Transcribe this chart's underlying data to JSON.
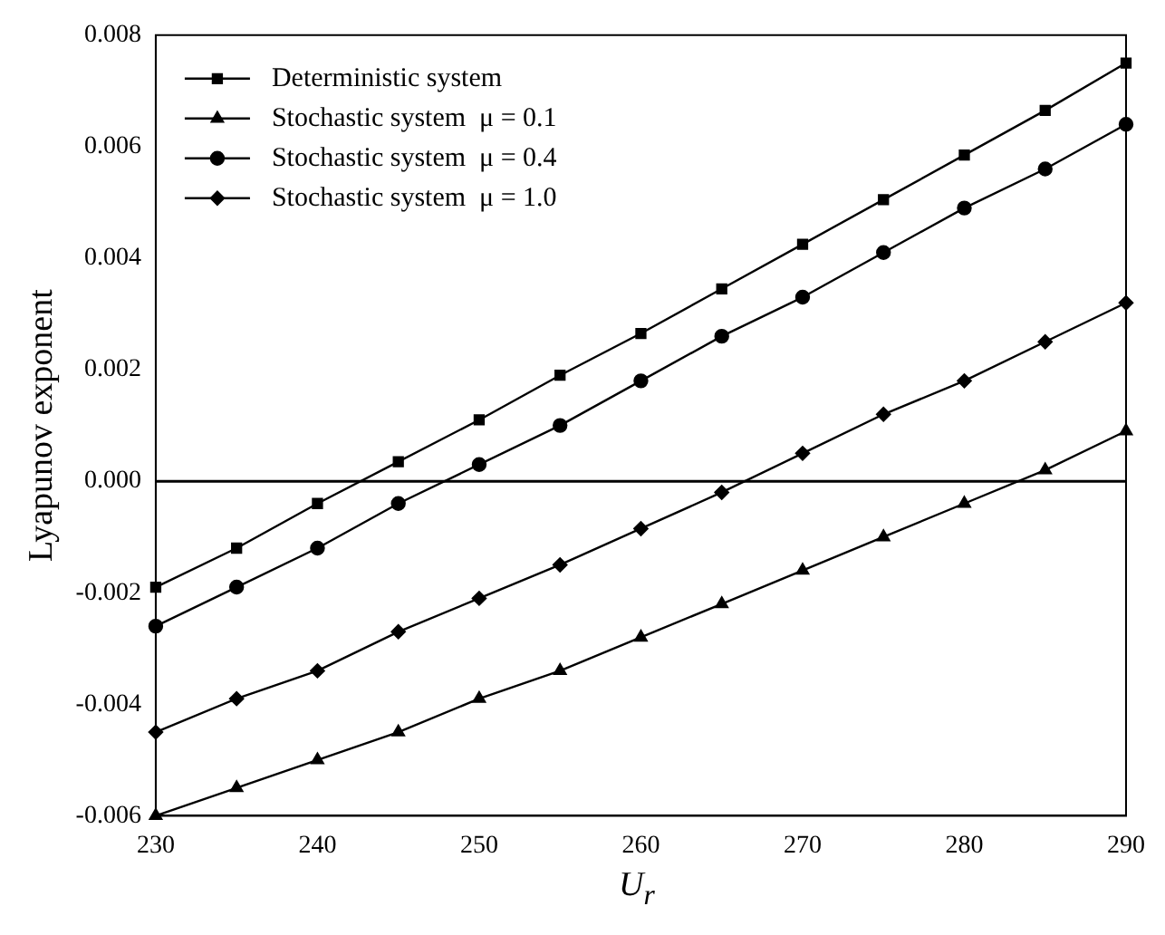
{
  "chart_data": {
    "type": "line",
    "xlabel": "U$_{r}$",
    "ylabel": "Lyapunov exponent",
    "x": [
      230,
      235,
      240,
      245,
      250,
      255,
      260,
      265,
      270,
      275,
      280,
      285,
      290
    ],
    "series": [
      {
        "name": "Deterministic system",
        "color": "#000000",
        "marker": "square",
        "values": [
          -0.0019,
          -0.0012,
          -0.0004,
          0.00035,
          0.0011,
          0.0019,
          0.00265,
          0.00345,
          0.00425,
          0.00505,
          0.00585,
          0.00665,
          0.0075
        ]
      },
      {
        "name": "Stochastic system  μ = 0.1",
        "color": "#000000",
        "marker": "triangle",
        "values": [
          -0.006,
          -0.0055,
          -0.005,
          -0.0045,
          -0.0039,
          -0.0034,
          -0.0028,
          -0.0022,
          -0.0016,
          -0.001,
          -0.0004,
          0.0002,
          0.0009
        ]
      },
      {
        "name": "Stochastic system  μ = 0.4",
        "color": "#000000",
        "marker": "circle",
        "values": [
          -0.0026,
          -0.0019,
          -0.0012,
          -0.0004,
          0.0003,
          0.001,
          0.0018,
          0.0026,
          0.0033,
          0.0041,
          0.0049,
          0.0056,
          0.0064
        ]
      },
      {
        "name": "Stochastic system  μ = 1.0",
        "color": "#000000",
        "marker": "diamond",
        "values": [
          -0.0045,
          -0.0039,
          -0.0034,
          -0.0027,
          -0.0021,
          -0.0015,
          -0.00085,
          -0.0002,
          0.0005,
          0.0012,
          0.0018,
          0.0025,
          0.0032
        ]
      }
    ],
    "xlim": [
      230,
      290
    ],
    "xticks": [
      230,
      240,
      250,
      260,
      270,
      280,
      290
    ],
    "ylim": [
      -0.006,
      0.008
    ],
    "yticks": [
      {
        "value": -0.006,
        "label": "-0.006"
      },
      {
        "value": -0.004,
        "label": "-0.004"
      },
      {
        "value": -0.002,
        "label": "-0.002"
      },
      {
        "value": 0,
        "label": "0.000"
      },
      {
        "value": 0.002,
        "label": "0.002"
      },
      {
        "value": 0.004,
        "label": "0.004"
      },
      {
        "value": 0.006,
        "label": "0.006"
      },
      {
        "value": 0.008,
        "label": "0.008"
      }
    ],
    "ref_lines": [
      {
        "axis": "y",
        "value": 0,
        "color": "#000000"
      }
    ],
    "legend": "top left",
    "grid": false
  }
}
